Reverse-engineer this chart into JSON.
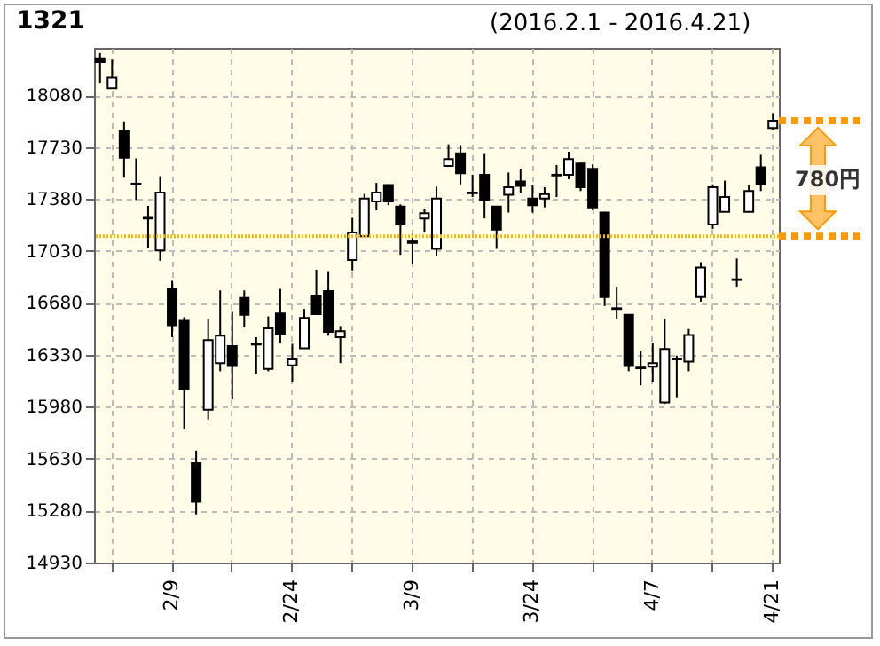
{
  "chart_data": {
    "type": "candlestick",
    "title": "1321",
    "subtitle": "(2016.2.1 - 2016.4.21)",
    "categories": [
      null,
      null,
      null,
      null,
      null,
      null,
      "2/9",
      null,
      null,
      null,
      null,
      null,
      null,
      null,
      null,
      null,
      "2/24",
      null,
      null,
      null,
      null,
      null,
      null,
      null,
      null,
      null,
      "3/9",
      null,
      null,
      null,
      null,
      null,
      null,
      null,
      null,
      null,
      "3/24",
      null,
      null,
      null,
      null,
      null,
      null,
      null,
      null,
      null,
      "4/7",
      null,
      null,
      null,
      null,
      null,
      null,
      null,
      null,
      null,
      "4/21"
    ],
    "ohlc": [
      [
        18330,
        18365,
        18160,
        18305
      ],
      [
        18130,
        18320,
        18125,
        18200
      ],
      [
        17840,
        17905,
        17525,
        17660
      ],
      [
        17485,
        17655,
        17375,
        17480
      ],
      [
        17260,
        17335,
        17050,
        17250
      ],
      [
        17035,
        17535,
        16965,
        17425
      ],
      [
        16775,
        16830,
        16450,
        16530
      ],
      [
        16560,
        16585,
        15830,
        16100
      ],
      [
        15600,
        15685,
        15255,
        15340
      ],
      [
        15960,
        16570,
        15895,
        16430
      ],
      [
        16275,
        16765,
        16220,
        16460
      ],
      [
        16390,
        16620,
        16030,
        16255
      ],
      [
        16715,
        16765,
        16515,
        16600
      ],
      [
        16405,
        16450,
        16200,
        16400
      ],
      [
        16235,
        16590,
        16220,
        16510
      ],
      [
        16610,
        16775,
        16410,
        16470
      ],
      [
        16260,
        16405,
        16145,
        16300
      ],
      [
        16375,
        16640,
        16375,
        16580
      ],
      [
        16730,
        16905,
        16600,
        16605
      ],
      [
        16760,
        16895,
        16460,
        16485
      ],
      [
        16450,
        16525,
        16275,
        16490
      ],
      [
        16970,
        17255,
        16900,
        17155
      ],
      [
        17130,
        17415,
        17130,
        17385
      ],
      [
        17365,
        17490,
        17305,
        17425
      ],
      [
        17475,
        17480,
        17340,
        17365
      ],
      [
        17330,
        17345,
        17005,
        17210
      ],
      [
        17095,
        17145,
        16940,
        17085
      ],
      [
        17250,
        17315,
        17155,
        17285
      ],
      [
        17045,
        17465,
        17000,
        17385
      ],
      [
        17605,
        17750,
        17605,
        17650
      ],
      [
        17690,
        17745,
        17480,
        17555
      ],
      [
        17425,
        17545,
        17395,
        17420
      ],
      [
        17545,
        17690,
        17250,
        17375
      ],
      [
        17330,
        17335,
        17045,
        17175
      ],
      [
        17410,
        17560,
        17290,
        17460
      ],
      [
        17500,
        17585,
        17420,
        17470
      ],
      [
        17385,
        17475,
        17290,
        17340
      ],
      [
        17385,
        17460,
        17325,
        17415
      ],
      [
        17545,
        17610,
        17395,
        17540
      ],
      [
        17545,
        17700,
        17515,
        17650
      ],
      [
        17620,
        17625,
        17435,
        17460
      ],
      [
        17585,
        17615,
        17305,
        17325
      ],
      [
        17290,
        17295,
        16660,
        16720
      ],
      [
        16645,
        16790,
        16575,
        16640
      ],
      [
        16600,
        16605,
        16220,
        16255
      ],
      [
        16245,
        16360,
        16125,
        16240
      ],
      [
        16250,
        16410,
        16145,
        16275
      ],
      [
        16010,
        16575,
        16000,
        16370
      ],
      [
        16305,
        16325,
        16045,
        16300
      ],
      [
        16285,
        16505,
        16220,
        16465
      ],
      [
        16720,
        16955,
        16690,
        16920
      ],
      [
        17210,
        17480,
        17180,
        17460
      ],
      [
        17295,
        17505,
        17295,
        17395
      ],
      [
        16840,
        16980,
        16790,
        16835
      ],
      [
        17295,
        17475,
        17295,
        17435
      ],
      [
        17595,
        17680,
        17435,
        17480
      ],
      [
        17860,
        17960,
        17850,
        17910
      ]
    ],
    "ylim": [
      14930,
      18400
    ],
    "yticks": [
      14930,
      15280,
      15630,
      15980,
      16330,
      16680,
      17030,
      17380,
      17730,
      18080
    ],
    "grid": true,
    "ref_lines": [
      {
        "axis": "y",
        "value": 17130,
        "color": "#f0c000",
        "line_style": "dotted"
      }
    ],
    "annotations": [
      "780円"
    ]
  }
}
